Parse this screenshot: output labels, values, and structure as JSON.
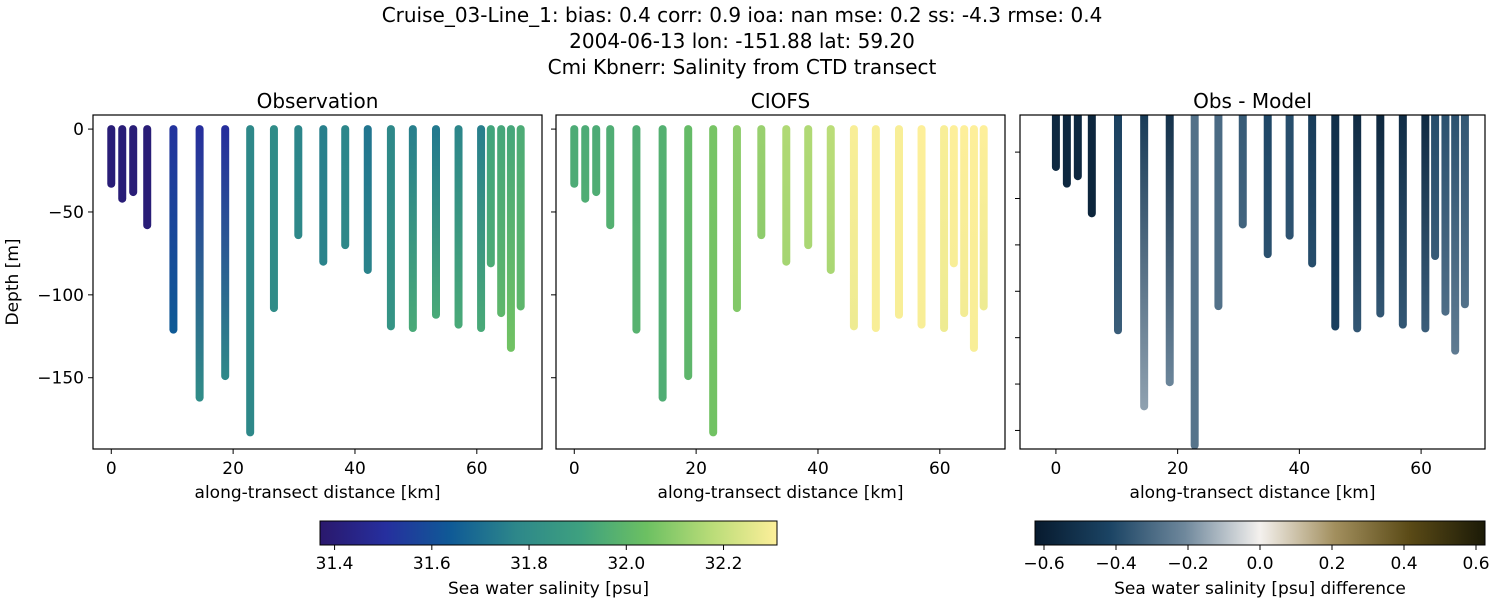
{
  "chart_data": {
    "type": "scatter",
    "title_lines": [
      "Cruise_03-Line_1: bias: 0.4  corr: 0.9  ioa: nan  mse: 0.2  ss: -4.3  rmse: 0.4",
      "2004-06-13 lon: -151.88 lat: 59.20",
      "Cmi Kbnerr: Salinity from CTD transect"
    ],
    "ylabel": "Depth [m]",
    "xlabel": "along-transect distance [km]",
    "panels": [
      {
        "title": "Observation",
        "field": "obs",
        "xlim": [
          -3,
          70.7
        ],
        "ylim": [
          -193,
          8.5
        ],
        "xticks": [
          0,
          20,
          40,
          60
        ],
        "yticks": [
          0,
          -50,
          -100,
          -150
        ],
        "ytick_labels": [
          "0",
          "−50",
          "−100",
          "−150"
        ],
        "show_ytick_labels": true,
        "colorbar": 0
      },
      {
        "title": "CIOFS",
        "field": "model",
        "xlim": [
          -3,
          70.7
        ],
        "ylim": [
          -193,
          8.5
        ],
        "xticks": [
          0,
          20,
          40,
          60
        ],
        "yticks": [
          0,
          -50,
          -100,
          -150
        ],
        "show_ytick_labels": false,
        "colorbar": 0
      },
      {
        "title": "Obs - Model",
        "field": "diff",
        "xlim": [
          -5.9,
          70.5
        ],
        "ylim": [
          -185,
          -5
        ],
        "xticks": [
          0,
          20,
          40,
          60
        ],
        "yticks": [
          -25,
          -50,
          -75,
          -100,
          -125,
          -150,
          -175
        ],
        "show_ytick_labels": false,
        "colorbar": 1
      }
    ],
    "xtick_labels": [
      "0",
      "20",
      "40",
      "60"
    ],
    "stations": [
      {
        "x": 0.0,
        "depth": -33,
        "obs": [
          31.4,
          31.4
        ],
        "model": [
          31.95,
          31.95
        ]
      },
      {
        "x": 1.8,
        "depth": -42,
        "obs": [
          31.4,
          31.4
        ],
        "model": [
          31.95,
          31.96
        ]
      },
      {
        "x": 3.6,
        "depth": -38,
        "obs": [
          31.4,
          31.4
        ],
        "model": [
          31.95,
          31.96
        ]
      },
      {
        "x": 5.9,
        "depth": -58,
        "obs": [
          31.4,
          31.4
        ],
        "model": [
          31.96,
          31.97
        ]
      },
      {
        "x": 10.2,
        "depth": -121,
        "obs": [
          31.52,
          31.64
        ],
        "model": [
          31.96,
          31.98
        ]
      },
      {
        "x": 14.5,
        "depth": -162,
        "obs": [
          31.5,
          31.8
        ],
        "model": [
          31.97,
          31.96
        ]
      },
      {
        "x": 18.7,
        "depth": -149,
        "obs": [
          31.5,
          31.78
        ],
        "model": [
          32.02,
          32.0
        ]
      },
      {
        "x": 22.8,
        "depth": -183,
        "obs": [
          31.78,
          31.78
        ],
        "model": [
          32.06,
          32.05
        ]
      },
      {
        "x": 26.7,
        "depth": -108,
        "obs": [
          31.8,
          31.8
        ],
        "model": [
          32.1,
          32.08
        ]
      },
      {
        "x": 30.7,
        "depth": -64,
        "obs": [
          31.77,
          31.78
        ],
        "model": [
          32.12,
          32.1
        ]
      },
      {
        "x": 34.8,
        "depth": -80,
        "obs": [
          31.75,
          31.76
        ],
        "model": [
          32.16,
          32.14
        ]
      },
      {
        "x": 38.4,
        "depth": -70,
        "obs": [
          31.77,
          31.78
        ],
        "model": [
          32.16,
          32.15
        ]
      },
      {
        "x": 42.1,
        "depth": -85,
        "obs": [
          31.72,
          31.76
        ],
        "model": [
          32.18,
          32.15
        ]
      },
      {
        "x": 45.9,
        "depth": -119,
        "obs": [
          31.78,
          31.84
        ],
        "model": [
          32.3,
          32.28
        ]
      },
      {
        "x": 49.5,
        "depth": -120,
        "obs": [
          31.75,
          31.94
        ],
        "model": [
          32.3,
          32.3
        ]
      },
      {
        "x": 53.3,
        "depth": -112,
        "obs": [
          31.73,
          31.94
        ],
        "model": [
          32.3,
          32.3
        ]
      },
      {
        "x": 57.0,
        "depth": -118,
        "obs": [
          31.77,
          31.94
        ],
        "model": [
          32.31,
          32.3
        ]
      },
      {
        "x": 60.7,
        "depth": -120,
        "obs": [
          31.75,
          31.94
        ],
        "model": [
          32.3,
          32.28
        ]
      },
      {
        "x": 62.3,
        "depth": -81,
        "obs": [
          31.92,
          31.95
        ],
        "model": [
          32.31,
          32.3
        ]
      },
      {
        "x": 64.0,
        "depth": -111,
        "obs": [
          31.93,
          32.0
        ],
        "model": [
          32.31,
          32.29
        ]
      },
      {
        "x": 65.6,
        "depth": -132,
        "obs": [
          31.93,
          32.05
        ],
        "model": [
          32.31,
          32.3
        ]
      },
      {
        "x": 67.2,
        "depth": -107,
        "obs": [
          31.95,
          32.0
        ],
        "model": [
          32.31,
          32.28
        ]
      }
    ],
    "colorbars": [
      {
        "label": "Sea water salinity [psu]",
        "range": [
          31.37,
          32.31
        ],
        "ticks": [
          31.4,
          31.6,
          31.8,
          32.0,
          32.2
        ],
        "tick_labels": [
          "31.4",
          "31.6",
          "31.8",
          "32.0",
          "32.2"
        ],
        "colormap": [
          "#2a186c",
          "#262f9e",
          "#0f5a96",
          "#2d878a",
          "#3ea17f",
          "#6cc062",
          "#b9dc78",
          "#fdef9a"
        ]
      },
      {
        "label": "Sea water salinity [psu] difference",
        "range": [
          -0.625,
          0.625
        ],
        "ticks": [
          -0.6,
          -0.4,
          -0.2,
          0.0,
          0.2,
          0.4,
          0.6
        ],
        "tick_labels": [
          "−0.6",
          "−0.4",
          "−0.2",
          "0.0",
          "0.2",
          "0.4",
          "0.6"
        ],
        "colormap": [
          "#071a2e",
          "#1b4464",
          "#6f889c",
          "#f4f1ee",
          "#a28f5e",
          "#5a4a16",
          "#1b1a07"
        ]
      }
    ]
  }
}
